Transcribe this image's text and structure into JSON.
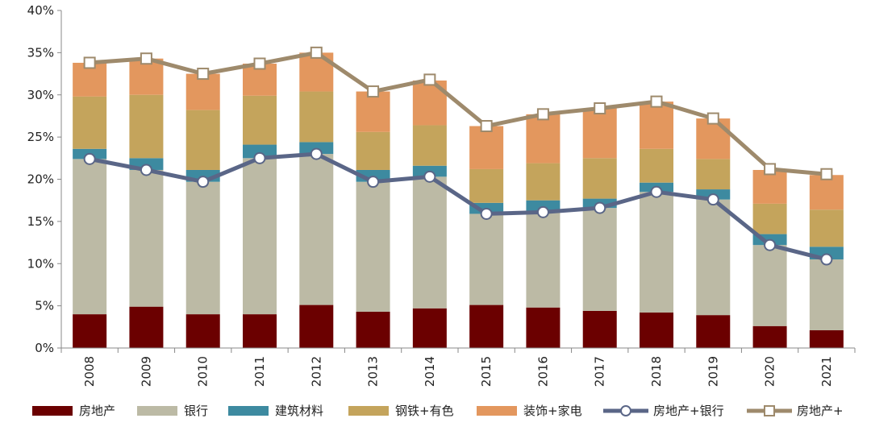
{
  "chart_data": {
    "type": "bar",
    "stacked": true,
    "categories": [
      "2008",
      "2009",
      "2010",
      "2011",
      "2012",
      "2013",
      "2014",
      "2015",
      "2016",
      "2017",
      "2018",
      "2019",
      "2020",
      "2021"
    ],
    "ylim": [
      0,
      40
    ],
    "yticks": [
      "0%",
      "5%",
      "10%",
      "15%",
      "20%",
      "25%",
      "30%",
      "35%",
      "40%"
    ],
    "ytick_values": [
      0,
      5,
      10,
      15,
      20,
      25,
      30,
      35,
      40
    ],
    "grid": false,
    "legend_position": "bottom",
    "bar_series": [
      {
        "name": "房地产",
        "color": "#6b0000",
        "values": [
          4.0,
          4.9,
          4.0,
          4.0,
          5.1,
          4.3,
          4.7,
          5.1,
          4.8,
          4.4,
          4.2,
          3.9,
          2.6,
          2.1
        ]
      },
      {
        "name": "银行",
        "color": "#bcbaa5",
        "values": [
          18.4,
          16.2,
          15.7,
          18.5,
          17.9,
          15.4,
          15.6,
          10.8,
          11.3,
          12.2,
          14.3,
          13.7,
          9.6,
          8.4
        ]
      },
      {
        "name": "建筑材料",
        "color": "#3d8aa0",
        "values": [
          1.2,
          1.4,
          1.4,
          1.6,
          1.4,
          1.4,
          1.3,
          1.3,
          1.4,
          1.1,
          1.1,
          1.2,
          1.3,
          1.5
        ]
      },
      {
        "name": "钢铁+有色",
        "color": "#c4a45c",
        "values": [
          6.2,
          7.5,
          7.1,
          5.8,
          6.0,
          4.5,
          4.8,
          4.0,
          4.4,
          4.8,
          4.0,
          3.6,
          3.6,
          4.4
        ]
      },
      {
        "name": "装饰+家电",
        "color": "#e3975e",
        "values": [
          4.0,
          4.3,
          4.3,
          3.8,
          4.6,
          4.8,
          5.3,
          5.1,
          5.8,
          5.9,
          5.6,
          4.8,
          4.0,
          4.1
        ]
      }
    ],
    "line_series": [
      {
        "name": "房地产+银行",
        "color": "#5a6687",
        "marker": "circle",
        "values": [
          22.4,
          21.1,
          19.7,
          22.5,
          23.0,
          19.7,
          20.3,
          15.9,
          16.1,
          16.6,
          18.5,
          17.6,
          12.2,
          10.5
        ]
      },
      {
        "name": "房地产+",
        "color": "#9e8a6c",
        "marker": "square",
        "values": [
          33.8,
          34.3,
          32.5,
          33.7,
          35.0,
          30.4,
          31.8,
          26.3,
          27.7,
          28.4,
          29.2,
          27.2,
          21.2,
          20.6
        ]
      }
    ]
  }
}
